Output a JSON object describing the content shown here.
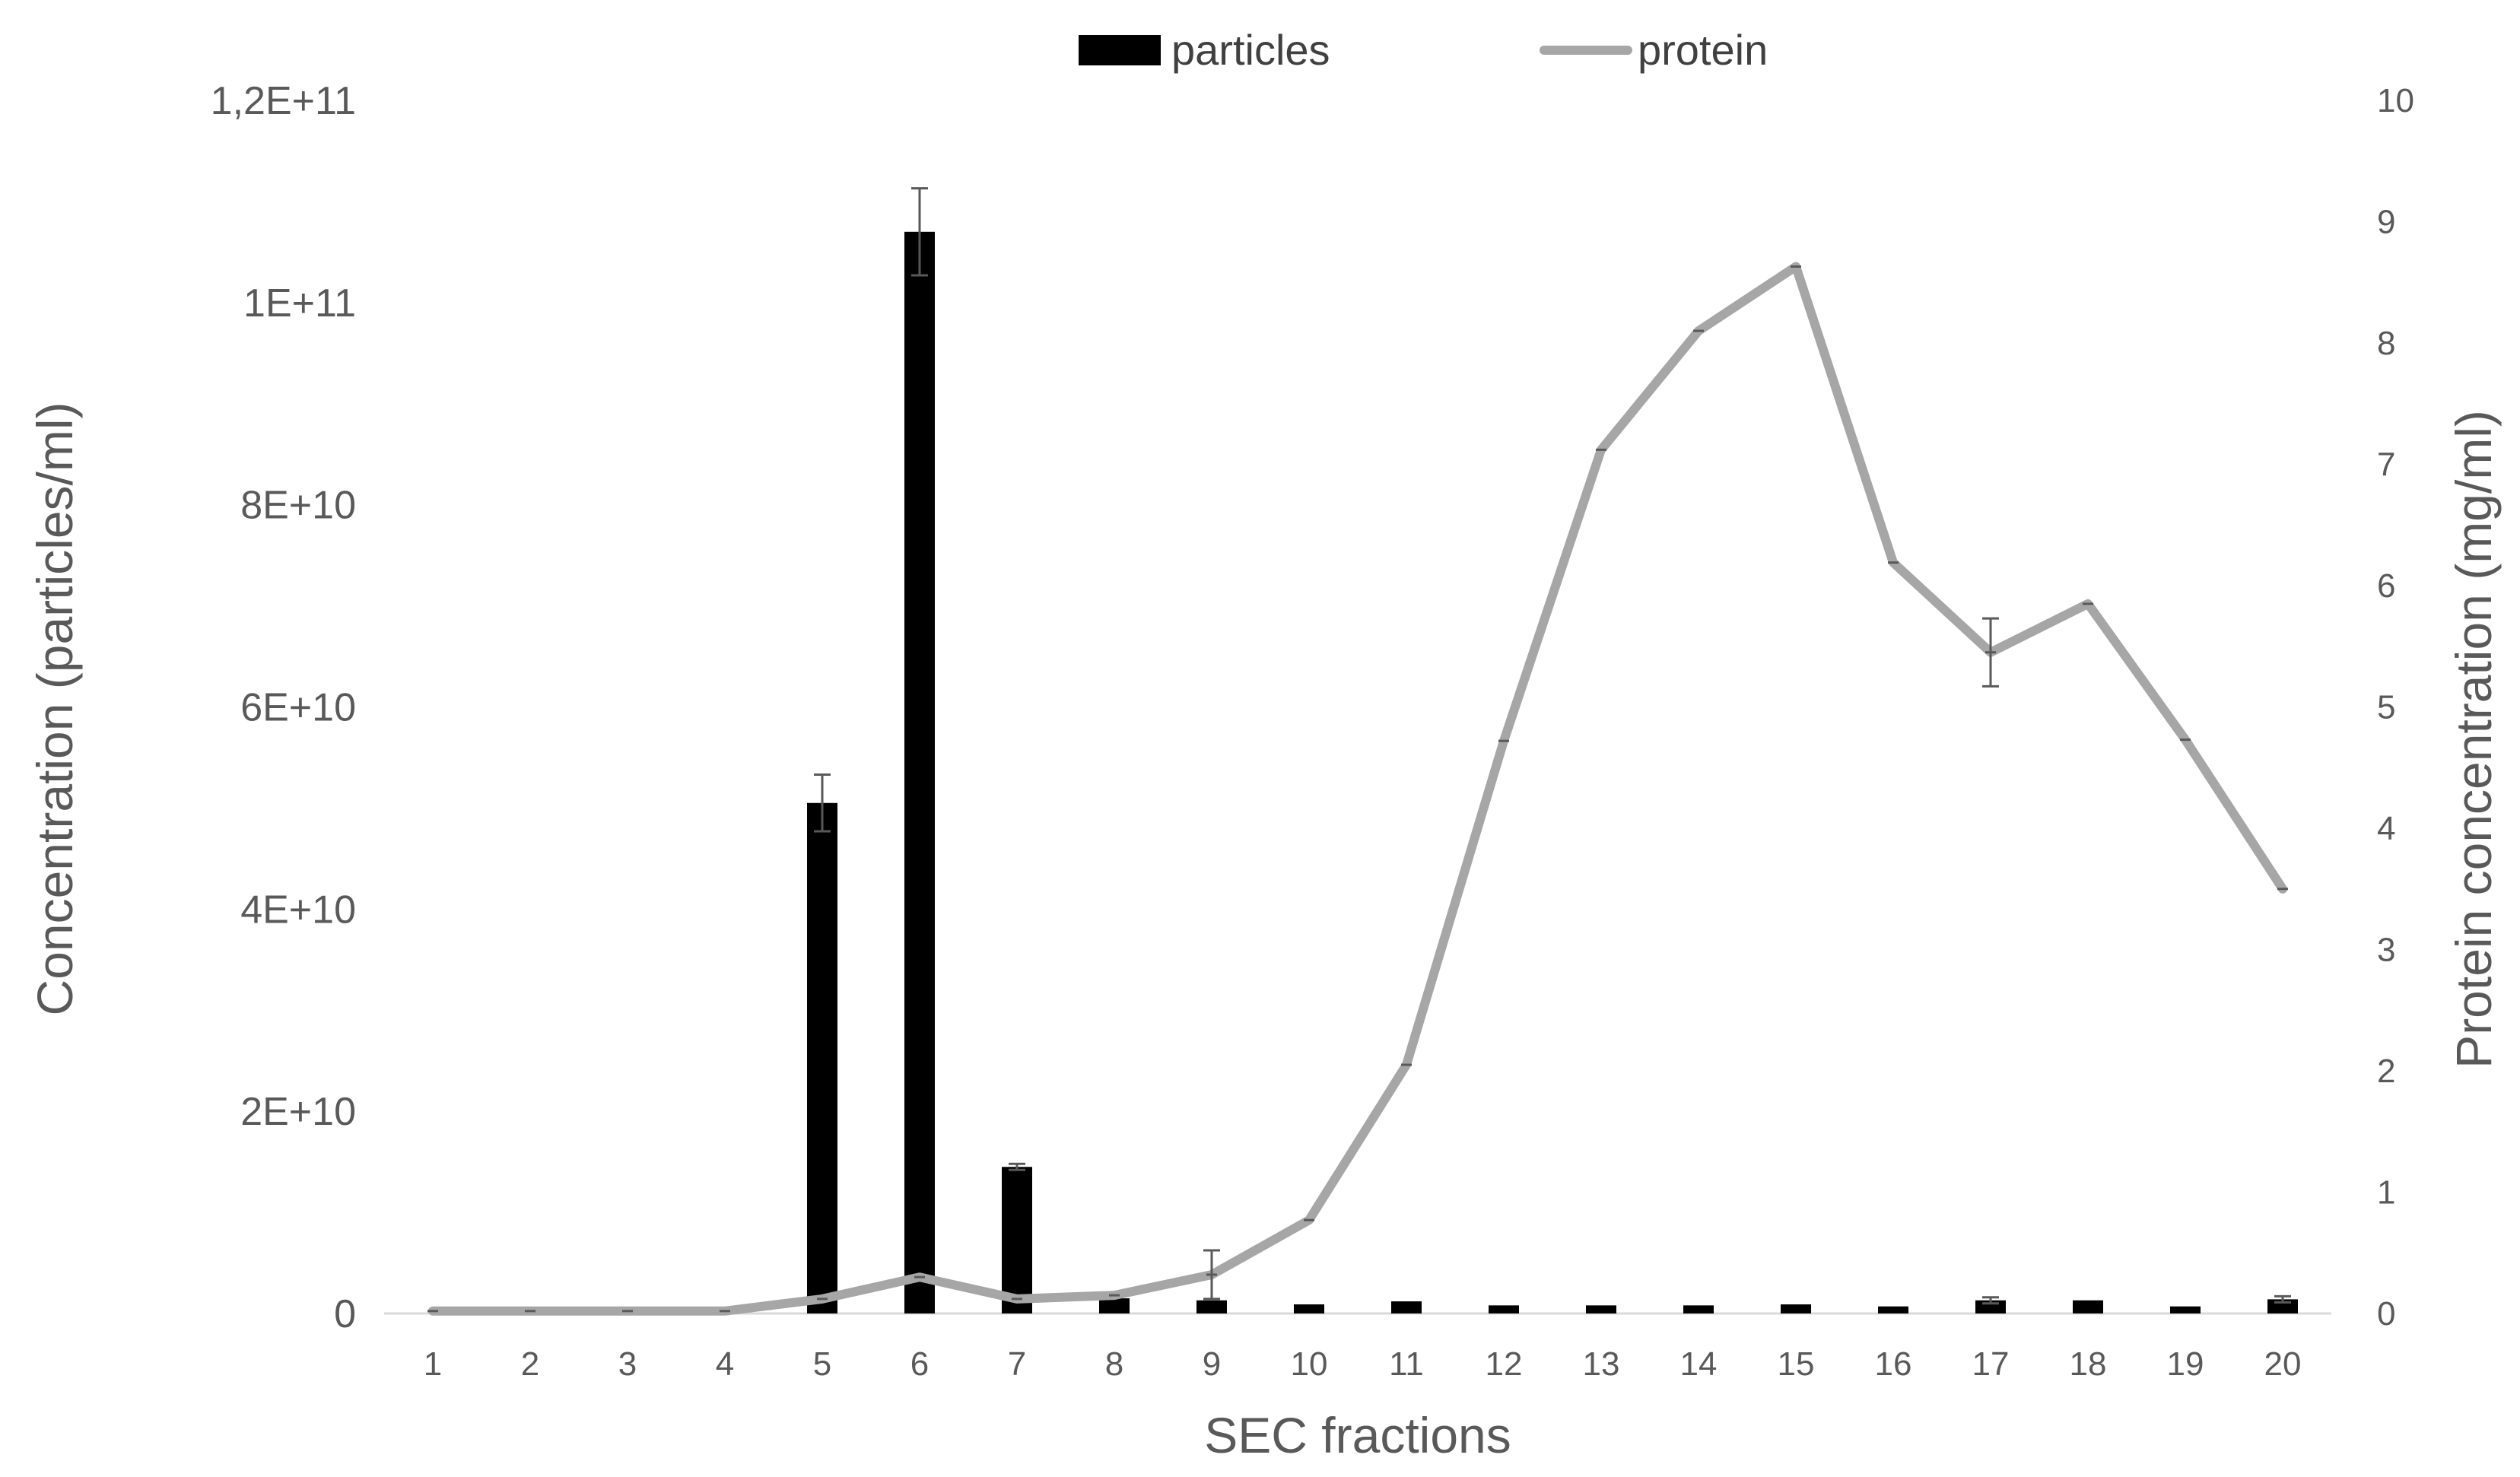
{
  "chart_data": {
    "type": "bar+line",
    "title": "",
    "xlabel": "SEC fractions",
    "ylabel_left": "Concentration  (particles/ml)",
    "ylabel_right": "Protein concentration  (mg/ml)",
    "categories": [
      "1",
      "2",
      "3",
      "4",
      "5",
      "6",
      "7",
      "8",
      "9",
      "10",
      "11",
      "12",
      "13",
      "14",
      "15",
      "16",
      "17",
      "18",
      "19",
      "20"
    ],
    "y_left": {
      "lim": [
        0,
        120000000000
      ],
      "ticks": [
        0,
        20000000000,
        40000000000,
        60000000000,
        80000000000,
        100000000000,
        120000000000
      ],
      "tick_labels": [
        "0",
        "2E+10",
        "4E+10",
        "6E+10",
        "8E+10",
        "1E+11",
        "1,2E+11"
      ]
    },
    "y_right": {
      "lim": [
        0,
        10
      ],
      "ticks": [
        0,
        1,
        2,
        3,
        4,
        5,
        6,
        7,
        8,
        9,
        10
      ],
      "tick_labels": [
        "0",
        "1",
        "2",
        "3",
        "4",
        "5",
        "6",
        "7",
        "8",
        "9",
        "10"
      ]
    },
    "series": [
      {
        "name": "particles",
        "type": "bar",
        "axis": "left",
        "color": "#000000",
        "values": [
          0,
          0,
          0,
          0,
          50500000000,
          107000000000,
          14500000000,
          1500000000,
          1300000000,
          900000000,
          1200000000,
          800000000,
          800000000,
          800000000,
          900000000,
          700000000,
          1300000000,
          1300000000,
          700000000,
          1400000000
        ],
        "error": [
          0,
          0,
          0,
          0,
          2800000000,
          4300000000,
          300000000,
          0,
          0,
          0,
          0,
          0,
          0,
          0,
          0,
          0,
          300000000,
          0,
          0,
          300000000
        ]
      },
      {
        "name": "protein",
        "type": "line",
        "axis": "right",
        "color": "#a6a6a6",
        "values": [
          0.02,
          0.02,
          0.02,
          0.02,
          0.12,
          0.3,
          0.12,
          0.15,
          0.32,
          0.77,
          2.05,
          4.72,
          7.12,
          8.1,
          8.63,
          6.19,
          5.45,
          5.85,
          4.73,
          3.5
        ],
        "error": [
          0,
          0,
          0,
          0,
          0,
          0,
          0,
          0,
          0.2,
          0,
          0,
          0,
          0,
          0,
          0,
          0,
          0.28,
          0,
          0,
          0
        ]
      }
    ],
    "legend": {
      "position": "top-center"
    },
    "grid": false
  }
}
